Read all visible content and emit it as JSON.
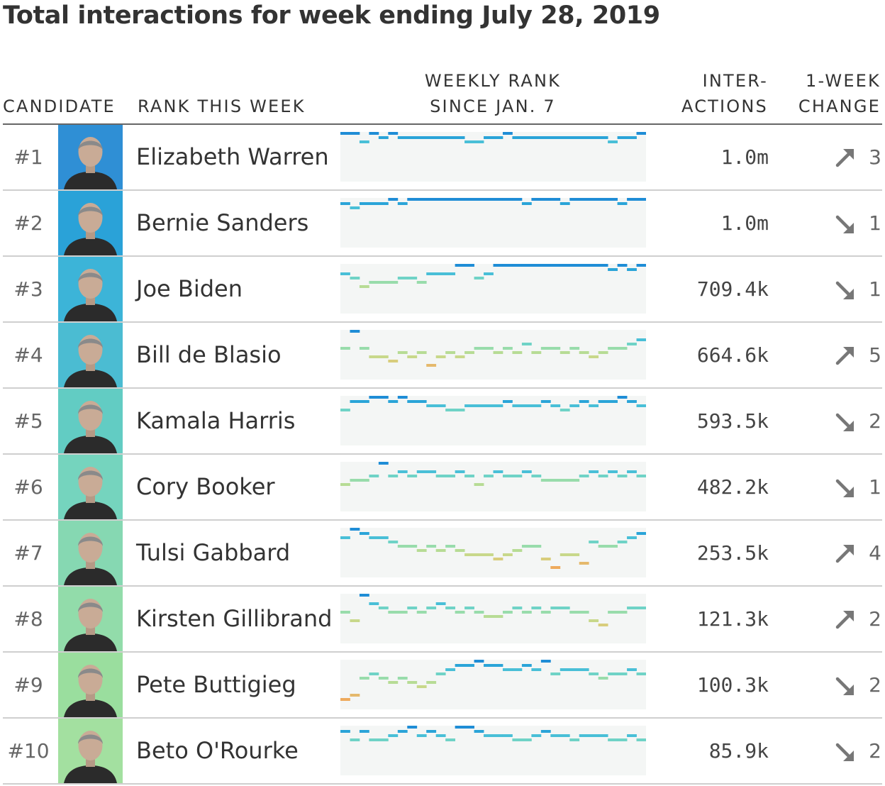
{
  "title": "Total interactions for week ending July 28, 2019",
  "headers": {
    "candidate": "CANDIDATE",
    "rank_this_week": "RANK THIS WEEK",
    "weekly_rank_line1": "WEEKLY RANK",
    "weekly_rank_line2": "SINCE JAN. 7",
    "interactions_line1": "INTER-",
    "interactions_line2": "ACTIONS",
    "change_line1": "1-WEEK",
    "change_line2": "CHANGE"
  },
  "colors": {
    "spark_background": "#f4f6f5",
    "rank_scale": [
      "#1f8dd6",
      "#2aa4d8",
      "#49bfd7",
      "#6fd3c6",
      "#98dcab",
      "#b7dc95",
      "#c8d88a",
      "#d8cd7c",
      "#e5b96c",
      "#eeaa5c"
    ],
    "arrow": "#777777"
  },
  "chart_data": {
    "type": "table",
    "title": "Total interactions for week ending July 28, 2019",
    "columns": [
      "RANK THIS WEEK",
      "CANDIDATE",
      "WEEKLY RANK SINCE JAN. 7",
      "INTERACTIONS",
      "1-WEEK CHANGE"
    ],
    "rows": [
      {
        "rank": "#1",
        "name": "Elizabeth Warren",
        "interactions": "1.0m",
        "direction": "up",
        "change": "3",
        "weekly_ranks": [
          1,
          1,
          3,
          1,
          2,
          1,
          2,
          2,
          2,
          2,
          2,
          2,
          2,
          3,
          3,
          2,
          2,
          1,
          2,
          2,
          2,
          2,
          2,
          2,
          2,
          2,
          2,
          2,
          3,
          2,
          2,
          1
        ],
        "photo_bg": "#2f8fd5"
      },
      {
        "rank": "#2",
        "name": "Bernie Sanders",
        "interactions": "1.0m",
        "direction": "down",
        "change": "1",
        "weekly_ranks": [
          2,
          3,
          2,
          2,
          2,
          1,
          2,
          1,
          1,
          1,
          1,
          1,
          1,
          1,
          1,
          1,
          1,
          1,
          1,
          2,
          1,
          1,
          1,
          2,
          1,
          1,
          1,
          1,
          1,
          2,
          1,
          1
        ],
        "photo_bg": "#2aa2d8"
      },
      {
        "rank": "#3",
        "name": "Joe Biden",
        "interactions": "709.4k",
        "direction": "down",
        "change": "1",
        "weekly_ranks": [
          3,
          4,
          6,
          5,
          5,
          5,
          4,
          4,
          5,
          3,
          3,
          3,
          1,
          1,
          4,
          3,
          1,
          1,
          1,
          1,
          1,
          1,
          1,
          1,
          1,
          1,
          1,
          1,
          2,
          1,
          2,
          1
        ],
        "photo_bg": "#3cb4d8"
      },
      {
        "rank": "#4",
        "name": "Bill de Blasio",
        "interactions": "664.6k",
        "direction": "up",
        "change": "5",
        "weekly_ranks": [
          5,
          1,
          5,
          7,
          7,
          8,
          6,
          7,
          6,
          9,
          7,
          6,
          7,
          6,
          5,
          5,
          6,
          5,
          6,
          4,
          6,
          5,
          5,
          6,
          5,
          6,
          7,
          6,
          5,
          5,
          4,
          3
        ],
        "photo_bg": "#4bbcd2"
      },
      {
        "rank": "#5",
        "name": "Kamala Harris",
        "interactions": "593.5k",
        "direction": "down",
        "change": "2",
        "weekly_ranks": [
          4,
          2,
          2,
          1,
          1,
          2,
          1,
          2,
          2,
          3,
          3,
          4,
          4,
          3,
          3,
          3,
          3,
          2,
          3,
          3,
          3,
          2,
          3,
          4,
          3,
          2,
          3,
          2,
          2,
          1,
          2,
          3
        ],
        "photo_bg": "#62ccc3"
      },
      {
        "rank": "#6",
        "name": "Cory Booker",
        "interactions": "482.2k",
        "direction": "down",
        "change": "1",
        "weekly_ranks": [
          6,
          5,
          5,
          4,
          1,
          4,
          3,
          4,
          3,
          3,
          4,
          4,
          3,
          4,
          6,
          4,
          3,
          4,
          4,
          3,
          4,
          5,
          5,
          5,
          5,
          4,
          3,
          4,
          3,
          4,
          3,
          4
        ],
        "photo_bg": "#75d4be"
      },
      {
        "rank": "#7",
        "name": "Tulsi Gabbard",
        "interactions": "253.5k",
        "direction": "up",
        "change": "4",
        "weekly_ranks": [
          3,
          1,
          2,
          3,
          3,
          4,
          5,
          5,
          6,
          5,
          6,
          5,
          6,
          7,
          7,
          7,
          8,
          7,
          6,
          5,
          5,
          8,
          10,
          7,
          7,
          9,
          4,
          5,
          5,
          4,
          3,
          2
        ],
        "photo_bg": "#86d8b2"
      },
      {
        "rank": "#8",
        "name": "Kirsten Gillibrand",
        "interactions": "121.3k",
        "direction": "up",
        "change": "2",
        "weekly_ranks": [
          5,
          7,
          1,
          3,
          4,
          5,
          5,
          4,
          5,
          4,
          3,
          4,
          5,
          4,
          5,
          6,
          6,
          5,
          4,
          5,
          4,
          5,
          4,
          4,
          5,
          5,
          7,
          8,
          5,
          5,
          4,
          4
        ],
        "photo_bg": "#92dcaa"
      },
      {
        "rank": "#9",
        "name": "Pete Buttigieg",
        "interactions": "100.3k",
        "direction": "down",
        "change": "2",
        "weekly_ranks": [
          10,
          9,
          5,
          4,
          5,
          6,
          5,
          6,
          7,
          6,
          4,
          3,
          2,
          2,
          1,
          2,
          2,
          3,
          3,
          2,
          3,
          1,
          4,
          3,
          3,
          3,
          4,
          5,
          4,
          4,
          3,
          4
        ],
        "photo_bg": "#9ade9e"
      },
      {
        "rank": "#10",
        "name": "Beto O'Rourke",
        "interactions": "85.9k",
        "direction": "down",
        "change": "2",
        "weekly_ranks": [
          2,
          4,
          2,
          4,
          4,
          3,
          2,
          1,
          3,
          2,
          3,
          4,
          1,
          1,
          2,
          3,
          3,
          3,
          4,
          4,
          3,
          2,
          3,
          3,
          4,
          3,
          3,
          3,
          4,
          4,
          3,
          4
        ],
        "photo_bg": "#a3e0a0"
      }
    ]
  }
}
